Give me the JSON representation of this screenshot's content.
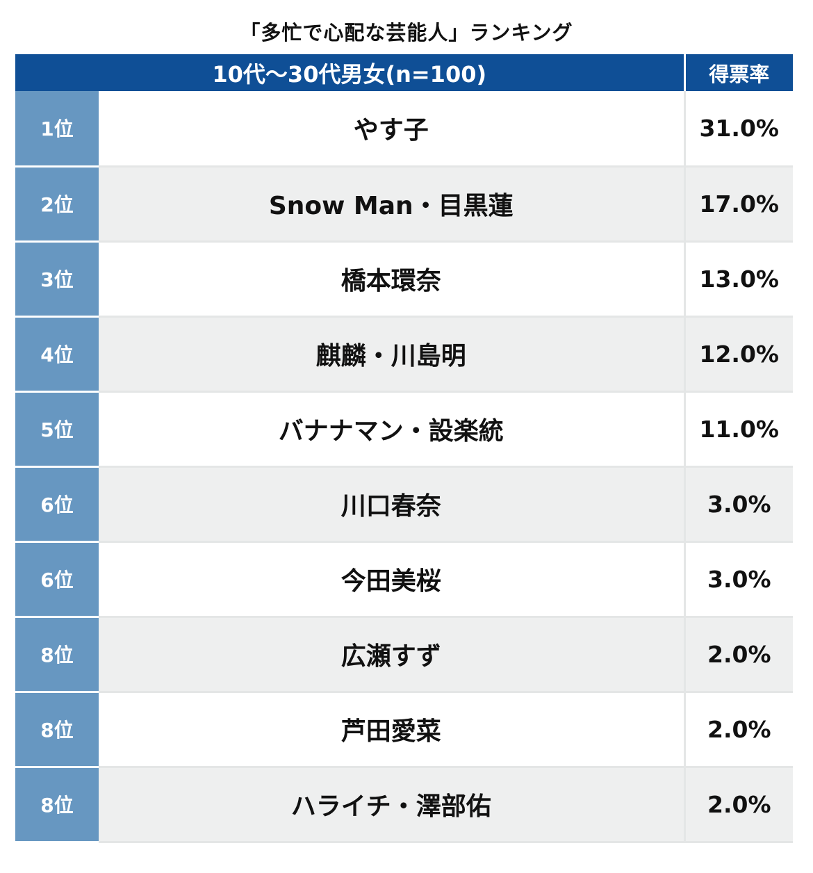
{
  "title": "「多忙で心配な芸能人」ランキング",
  "header": {
    "group_label": "10代〜30代男女(n=100)",
    "pct_label": "得票率"
  },
  "colors": {
    "header_bg": "#0f4f96",
    "rank_bg": "#6797c1",
    "row_alt_bg": "#eeefef"
  },
  "chart_data": {
    "type": "table",
    "title": "「多忙で心配な芸能人」ランキング",
    "columns": [
      "",
      "10代〜30代男女(n=100)",
      "得票率"
    ],
    "rows": [
      {
        "rank": "1位",
        "name": "やす子",
        "pct": "31.0%"
      },
      {
        "rank": "2位",
        "name": "Snow Man・目黒蓮",
        "pct": "17.0%"
      },
      {
        "rank": "3位",
        "name": "橋本環奈",
        "pct": "13.0%"
      },
      {
        "rank": "4位",
        "name": "麒麟・川島明",
        "pct": "12.0%"
      },
      {
        "rank": "5位",
        "name": "バナナマン・設楽統",
        "pct": "11.0%"
      },
      {
        "rank": "6位",
        "name": "川口春奈",
        "pct": "3.0%"
      },
      {
        "rank": "6位",
        "name": "今田美桜",
        "pct": "3.0%"
      },
      {
        "rank": "8位",
        "name": "広瀬すず",
        "pct": "2.0%"
      },
      {
        "rank": "8位",
        "name": "芦田愛菜",
        "pct": "2.0%"
      },
      {
        "rank": "8位",
        "name": "ハライチ・澤部佑",
        "pct": "2.0%"
      }
    ]
  }
}
